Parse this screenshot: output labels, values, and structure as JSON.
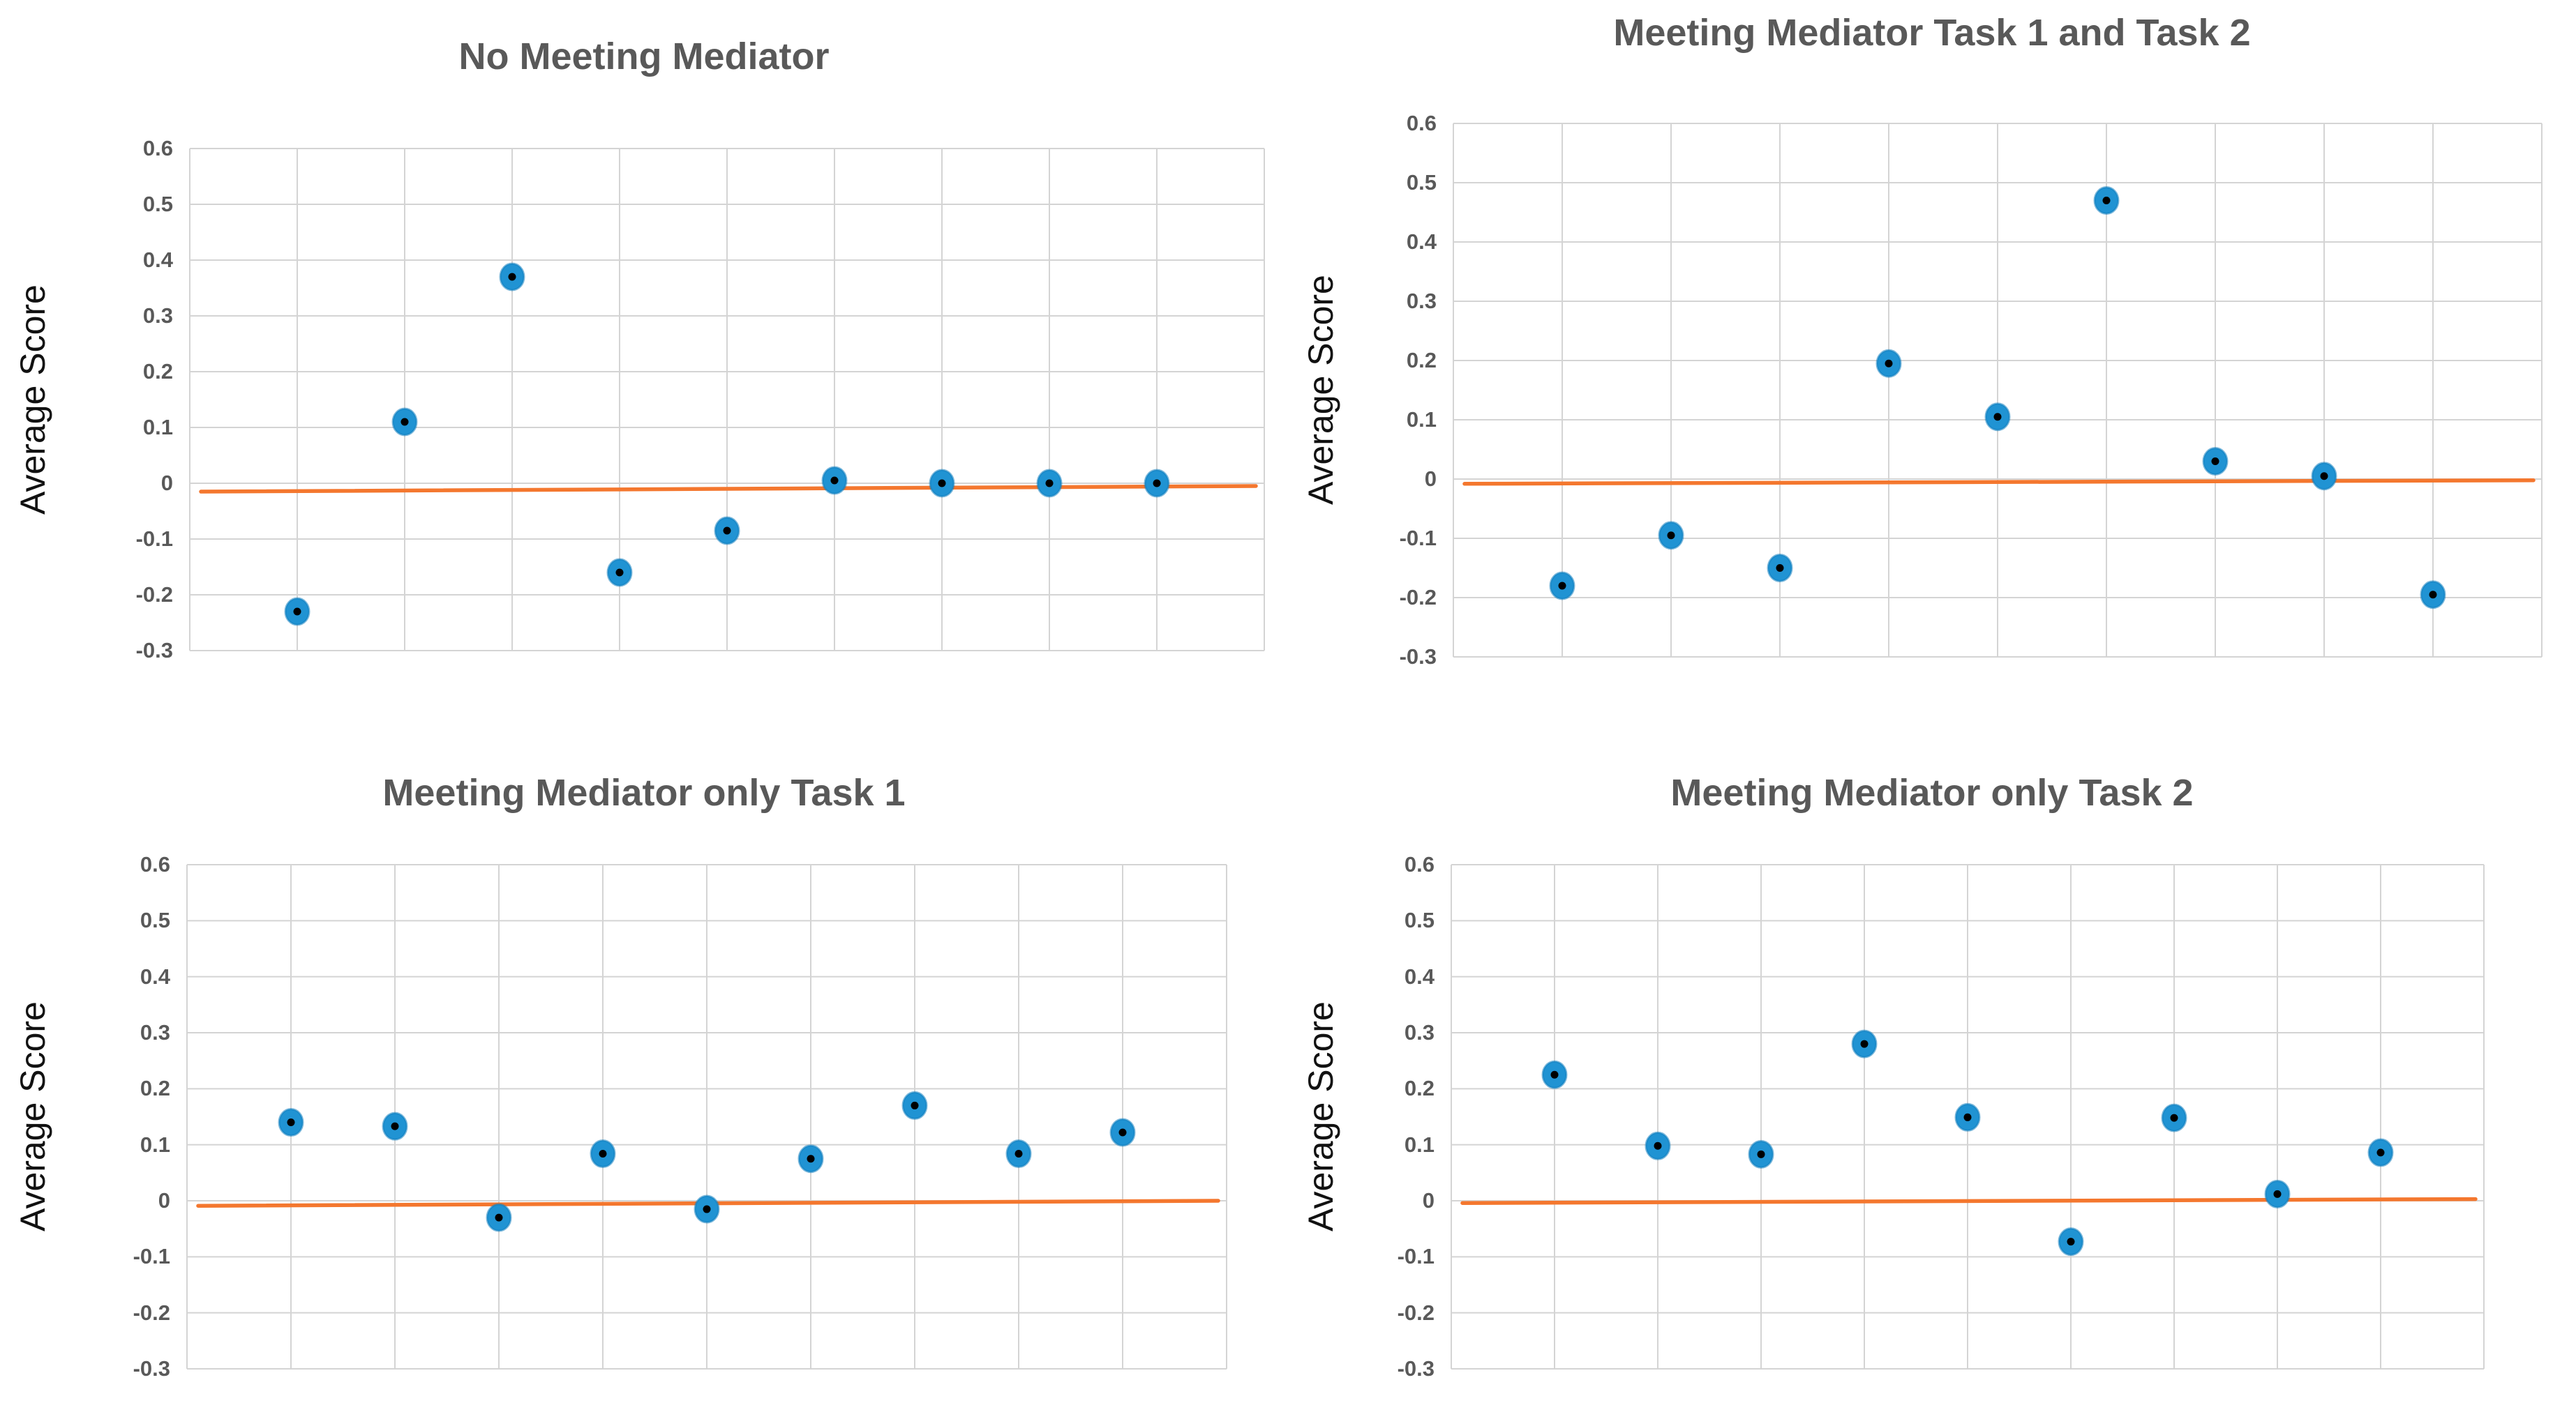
{
  "page": {
    "background": "#ffffff"
  },
  "styles": {
    "title_color": "#595959",
    "tick_color": "#595959",
    "ylabel_color": "#111111",
    "grid_color": "#D4D4D4",
    "marker_fill": "#2093D3",
    "marker_edge": "#117DBE",
    "marker_center_dot": "#000000",
    "trend_color": "#F4772E"
  },
  "y_axis": {
    "label": "Average Score",
    "min": -0.3,
    "max": 0.6,
    "step": 0.1,
    "tick_labels": [
      "0.6",
      "0.5",
      "0.4",
      "0.3",
      "0.2",
      "0.1",
      "0",
      "-0.1",
      "-0.2",
      "-0.3"
    ]
  },
  "x_axis": {
    "tick_labels": [],
    "divisions": 10,
    "note": "no x-axis labels shown"
  },
  "chart_data": [
    {
      "type": "scatter",
      "title": "No Meeting Mediator",
      "ylabel": "Average Score",
      "ylim": [
        -0.3,
        0.6
      ],
      "grid": true,
      "legend": false,
      "x": [
        1,
        2,
        3,
        4,
        5,
        6,
        7,
        8,
        9
      ],
      "y": [
        -0.23,
        0.11,
        0.37,
        -0.16,
        -0.085,
        0.005,
        0.0,
        0.0,
        0.0
      ],
      "trendline": {
        "y_start": -0.015,
        "y_end": -0.005
      }
    },
    {
      "type": "scatter",
      "title": "Meeting Mediator Task 1 and Task 2",
      "ylabel": "Average Score",
      "ylim": [
        -0.3,
        0.6
      ],
      "grid": true,
      "legend": false,
      "x": [
        1,
        2,
        3,
        4,
        5,
        6,
        7,
        8,
        9
      ],
      "y": [
        -0.18,
        -0.095,
        -0.15,
        0.195,
        0.105,
        0.47,
        0.03,
        0.005,
        -0.195
      ],
      "trendline": {
        "y_start": -0.008,
        "y_end": -0.002
      }
    },
    {
      "type": "scatter",
      "title": "Meeting Mediator only Task 1",
      "ylabel": "Average Score",
      "ylim": [
        -0.3,
        0.6
      ],
      "grid": true,
      "legend": false,
      "x": [
        1,
        2,
        3,
        4,
        5,
        6,
        7,
        8,
        9
      ],
      "y": [
        0.14,
        0.133,
        -0.03,
        0.084,
        -0.015,
        0.075,
        0.17,
        0.084,
        0.122
      ],
      "trendline": {
        "y_start": -0.009,
        "y_end": 0.0
      }
    },
    {
      "type": "scatter",
      "title": "Meeting Mediator only Task 2",
      "ylabel": "Average Score",
      "ylim": [
        -0.3,
        0.6
      ],
      "grid": true,
      "legend": false,
      "x": [
        1,
        2,
        3,
        4,
        5,
        6,
        7,
        8,
        9
      ],
      "y": [
        0.225,
        0.098,
        0.083,
        0.28,
        0.149,
        -0.073,
        0.148,
        0.012,
        0.086
      ],
      "trendline": {
        "y_start": -0.004,
        "y_end": 0.003
      }
    }
  ]
}
